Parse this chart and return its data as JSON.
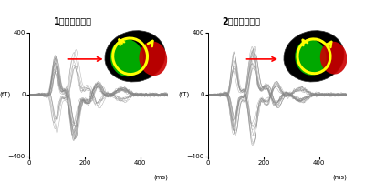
{
  "title1": "1回目の計測時",
  "title2": "2回目の計測時",
  "title2_prefix": "2",
  "ylabel": "(fT)",
  "xlabel": "(ms)",
  "ylim": [
    -400,
    400
  ],
  "xlim": [
    0,
    500
  ],
  "ytick_labels": [
    "400",
    "0",
    "−400"
  ],
  "ytick_vals": [
    400,
    0,
    -400
  ],
  "xtick_vals": [
    0,
    200,
    400
  ],
  "num_channels": 22,
  "seed": 42,
  "waveform_color": "#888888",
  "bg_color": "#ffffff",
  "brain_black": "#000000",
  "brain_green": "#00bb00",
  "brain_red": "#cc0000",
  "brain_yellow": "#ffff00",
  "arrow_red": "#ff0000"
}
